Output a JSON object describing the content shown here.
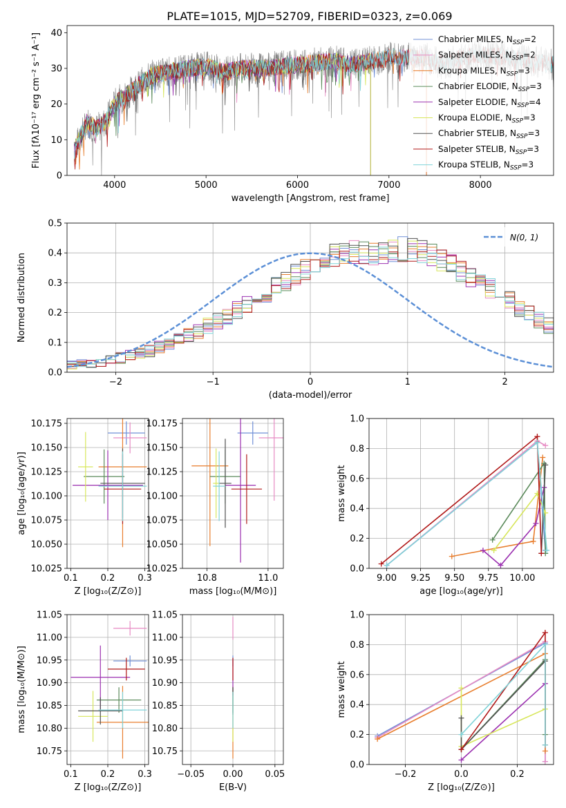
{
  "figure": {
    "title": "PLATE=1015, MJD=52709, FIBERID=0323, z=0.069"
  },
  "chart_data": [
    {
      "id": "spectrum",
      "type": "line",
      "xlabel": "wavelength [Angstrom, rest frame]",
      "ylabel": "Flux [fλ10⁻¹⁷ erg cm⁻² s⁻¹ A⁻¹]",
      "xlim": [
        3480,
        8800
      ],
      "ylim": [
        0,
        42
      ],
      "xticks": [
        4000,
        5000,
        6000,
        7000,
        8000
      ],
      "yticks": [
        0,
        10,
        20,
        30,
        40
      ],
      "grid": false,
      "legend_position": "top-right",
      "data_color": "#808080",
      "data_range": [
        3560,
        8800
      ],
      "continuum": [
        [
          3560,
          7
        ],
        [
          3700,
          15
        ],
        [
          3800,
          13
        ],
        [
          3900,
          15
        ],
        [
          4000,
          20
        ],
        [
          4200,
          24
        ],
        [
          4400,
          28
        ],
        [
          4600,
          29
        ],
        [
          4800,
          30
        ],
        [
          5000,
          30.5
        ],
        [
          5200,
          29
        ],
        [
          5400,
          30
        ],
        [
          5600,
          30
        ],
        [
          5800,
          30.5
        ],
        [
          6000,
          31
        ],
        [
          6200,
          31.5
        ],
        [
          6400,
          32
        ],
        [
          6600,
          31
        ],
        [
          6800,
          32
        ],
        [
          7000,
          33
        ],
        [
          7400,
          33
        ],
        [
          7600,
          31
        ],
        [
          7800,
          33
        ],
        [
          8000,
          34
        ],
        [
          8300,
          33
        ],
        [
          8600,
          32
        ],
        [
          8800,
          31
        ]
      ],
      "series": [
        {
          "name": "Chabrier MILES, N",
          "sub": "SSP",
          "suffix": "=2",
          "color": "#6f8fd7",
          "xmax": 7410
        },
        {
          "name": "Salpeter MILES, N",
          "sub": "SSP",
          "suffix": "=2",
          "color": "#e78ac3",
          "xmax": 7410
        },
        {
          "name": "Kroupa MILES, N",
          "sub": "SSP",
          "suffix": "=3",
          "color": "#e87d2c",
          "xmax": 7410
        },
        {
          "name": "Chabrier ELODIE, N",
          "sub": "SSP",
          "suffix": "=3",
          "color": "#5a8a5a",
          "xmax": 6800
        },
        {
          "name": "Salpeter ELODIE, N",
          "sub": "SSP",
          "suffix": "=4",
          "color": "#9b30b0",
          "xmax": 6800
        },
        {
          "name": "Kroupa ELODIE, N",
          "sub": "SSP",
          "suffix": "=3",
          "color": "#d7e65a",
          "xmax": 6800
        },
        {
          "name": "Chabrier STELIB, N",
          "sub": "SSP",
          "suffix": "=3",
          "color": "#505050",
          "xmax": 8800
        },
        {
          "name": "Salpeter STELIB, N",
          "sub": "SSP",
          "suffix": "=3",
          "color": "#b01818",
          "xmax": 8800
        },
        {
          "name": "Kroupa STELIB, N",
          "sub": "SSP",
          "suffix": "=3",
          "color": "#7fd3d8",
          "xmax": 8800
        }
      ]
    },
    {
      "id": "residuals",
      "type": "histogram",
      "xlabel": "(data-model)/error",
      "ylabel": "Normed distribution",
      "xlim": [
        -2.5,
        2.5
      ],
      "ylim": [
        0,
        0.5
      ],
      "xticks": [
        -2,
        -1,
        0,
        1,
        2
      ],
      "yticks": [
        0.0,
        0.1,
        0.2,
        0.3,
        0.4,
        0.5
      ],
      "grid": true,
      "legend_position": "top-right",
      "reference": {
        "name": "N(0, 1)",
        "color": "#5b8fd6",
        "mean": 0,
        "sigma": 1
      },
      "bin_edges_start": -2.5,
      "bin_width": 0.1,
      "base_values": [
        0.025,
        0.028,
        0.032,
        0.035,
        0.04,
        0.048,
        0.055,
        0.062,
        0.072,
        0.082,
        0.095,
        0.108,
        0.122,
        0.138,
        0.155,
        0.172,
        0.19,
        0.21,
        0.228,
        0.248,
        0.268,
        0.29,
        0.31,
        0.33,
        0.348,
        0.362,
        0.378,
        0.39,
        0.398,
        0.402,
        0.4,
        0.398,
        0.402,
        0.41,
        0.412,
        0.408,
        0.4,
        0.39,
        0.376,
        0.36,
        0.342,
        0.322,
        0.3,
        0.28,
        0.258,
        0.238,
        0.216,
        0.196,
        0.176,
        0.158,
        0.14,
        0.124,
        0.108,
        0.094,
        0.082,
        0.07,
        0.06,
        0.052,
        0.045,
        0.038,
        0.033,
        0.028,
        0.024,
        0.021,
        0.018,
        0.015,
        0.013,
        0.011,
        0.01,
        0.009
      ]
    },
    {
      "id": "age-vs-Z",
      "type": "errorbar",
      "xlabel": "Z [log₁₀(Z/Z⊙)]",
      "ylabel": "age  [log₁₀(age/yr)]",
      "xlim": [
        0.09,
        0.31
      ],
      "ylim": [
        10.025,
        10.18
      ],
      "xticks": [
        0.1,
        0.2,
        0.3
      ],
      "yticks": [
        10.025,
        10.05,
        10.075,
        10.1,
        10.125,
        10.15,
        10.175
      ],
      "grid": true,
      "points": [
        {
          "x": 0.25,
          "y": 10.165,
          "xerr": 0.05,
          "yerr": 0.012,
          "color": "#6f8fd7"
        },
        {
          "x": 0.26,
          "y": 10.16,
          "xerr": 0.045,
          "yerr": 0.016,
          "color": "#e78ac3"
        },
        {
          "x": 0.24,
          "y": 10.13,
          "xerr": 0.065,
          "yerr": 0.083,
          "color": "#e87d2c"
        },
        {
          "x": 0.19,
          "y": 10.12,
          "xerr": 0.055,
          "yerr": 0.028,
          "color": "#5a8a5a"
        },
        {
          "x": 0.2,
          "y": 10.111,
          "xerr": 0.095,
          "yerr": 0.036,
          "color": "#9b30b0"
        },
        {
          "x": 0.14,
          "y": 10.13,
          "xerr": 0.02,
          "yerr": 0.036,
          "color": "#d7e65a"
        },
        {
          "x": 0.24,
          "y": 10.113,
          "xerr": 0.06,
          "yerr": 0.036,
          "color": "#505050"
        },
        {
          "x": 0.24,
          "y": 10.107,
          "xerr": 0.05,
          "yerr": 0.036,
          "color": "#b01818"
        },
        {
          "x": 0.24,
          "y": 10.11,
          "xerr": 0.065,
          "yerr": 0.036,
          "color": "#7fd3d8"
        }
      ]
    },
    {
      "id": "age-vs-mass",
      "type": "errorbar",
      "xlabel": "mass [log₁₀(M/M⊙)]",
      "ylabel": "",
      "xlim": [
        10.72,
        11.05
      ],
      "ylim": [
        10.025,
        10.18
      ],
      "xticks": [
        10.8,
        11.0
      ],
      "yticks": [
        10.025,
        10.05,
        10.075,
        10.1,
        10.125,
        10.15,
        10.175
      ],
      "grid": true,
      "points": [
        {
          "x": 10.95,
          "y": 10.165,
          "xerr": 0.05,
          "yerr": 0.012,
          "color": "#6f8fd7"
        },
        {
          "x": 11.02,
          "y": 10.16,
          "xerr": 0.05,
          "yerr": 0.065,
          "color": "#e78ac3"
        },
        {
          "x": 10.81,
          "y": 10.131,
          "xerr": 0.06,
          "yerr": 0.083,
          "color": "#e87d2c"
        },
        {
          "x": 10.86,
          "y": 10.12,
          "xerr": 0.05,
          "yerr": 0.028,
          "color": "#5a8a5a"
        },
        {
          "x": 10.91,
          "y": 10.111,
          "xerr": 0.05,
          "yerr": 0.08,
          "color": "#9b30b0"
        },
        {
          "x": 10.83,
          "y": 10.113,
          "xerr": 0.01,
          "yerr": 0.036,
          "color": "#d7e65a"
        },
        {
          "x": 10.86,
          "y": 10.113,
          "xerr": 0.02,
          "yerr": 0.046,
          "color": "#505050"
        },
        {
          "x": 10.93,
          "y": 10.107,
          "xerr": 0.05,
          "yerr": 0.036,
          "color": "#b01818"
        },
        {
          "x": 10.84,
          "y": 10.11,
          "xerr": 0.02,
          "yerr": 0.036,
          "color": "#7fd3d8"
        }
      ]
    },
    {
      "id": "weight-vs-age",
      "type": "line",
      "xlabel": "age  [log₁₀(age/yr)]",
      "ylabel": "mass weight",
      "xlim": [
        8.87,
        10.23
      ],
      "ylim": [
        0,
        1
      ],
      "xticks": [
        9.0,
        9.25,
        9.5,
        9.75,
        10.0
      ],
      "yticks": [
        0.0,
        0.2,
        0.4,
        0.6,
        0.8,
        1.0
      ],
      "grid": true,
      "series": [
        {
          "color": "#6f8fd7",
          "points": [
            [
              9.0,
              0.02
            ],
            [
              10.11,
              0.84
            ],
            [
              10.17,
              0.12
            ]
          ]
        },
        {
          "color": "#e78ac3",
          "points": [
            [
              9.0,
              0.02
            ],
            [
              10.11,
              0.85
            ],
            [
              10.17,
              0.82
            ]
          ]
        },
        {
          "color": "#e87d2c",
          "points": [
            [
              9.48,
              0.08
            ],
            [
              10.08,
              0.18
            ],
            [
              10.15,
              0.74
            ]
          ]
        },
        {
          "color": "#5a8a5a",
          "points": [
            [
              9.78,
              0.19
            ],
            [
              10.16,
              0.7
            ],
            [
              10.17,
              0.1
            ]
          ]
        },
        {
          "color": "#9b30b0",
          "points": [
            [
              9.71,
              0.12
            ],
            [
              9.84,
              0.02
            ],
            [
              10.1,
              0.3
            ],
            [
              10.16,
              0.54
            ]
          ]
        },
        {
          "color": "#d7e65a",
          "points": [
            [
              9.79,
              0.12
            ],
            [
              10.11,
              0.5
            ],
            [
              10.17,
              0.37
            ]
          ]
        },
        {
          "color": "#505050",
          "points": [
            [
              10.14,
              0.1
            ],
            [
              10.17,
              0.69
            ]
          ]
        },
        {
          "color": "#b01818",
          "points": [
            [
              8.96,
              0.03
            ],
            [
              10.11,
              0.88
            ],
            [
              10.14,
              0.1
            ]
          ]
        },
        {
          "color": "#7fd3d8",
          "points": [
            [
              9.0,
              0.02
            ],
            [
              10.11,
              0.84
            ],
            [
              10.18,
              0.12
            ]
          ]
        }
      ]
    },
    {
      "id": "mass-vs-Z",
      "type": "errorbar",
      "xlabel": "Z [log₁₀(Z/Z⊙)]",
      "ylabel": "mass [log₁₀(M/M⊙)]",
      "xlim": [
        0.09,
        0.31
      ],
      "ylim": [
        10.72,
        11.05
      ],
      "xticks": [
        0.1,
        0.2,
        0.3
      ],
      "yticks": [
        10.75,
        10.8,
        10.85,
        10.9,
        10.95,
        11.0,
        11.05
      ],
      "grid": true,
      "points": [
        {
          "x": 0.26,
          "y": 10.948,
          "xerr": 0.045,
          "yerr": 0.012,
          "color": "#6f8fd7"
        },
        {
          "x": 0.26,
          "y": 11.02,
          "xerr": 0.045,
          "yerr": 0.016,
          "color": "#e78ac3"
        },
        {
          "x": 0.24,
          "y": 10.813,
          "xerr": 0.07,
          "yerr": 0.08,
          "color": "#e87d2c"
        },
        {
          "x": 0.23,
          "y": 10.862,
          "xerr": 0.06,
          "yerr": 0.028,
          "color": "#5a8a5a"
        },
        {
          "x": 0.18,
          "y": 10.912,
          "xerr": 0.08,
          "yerr": 0.07,
          "color": "#9b30b0"
        },
        {
          "x": 0.16,
          "y": 10.826,
          "xerr": 0.04,
          "yerr": 0.056,
          "color": "#d7e65a"
        },
        {
          "x": 0.18,
          "y": 10.838,
          "xerr": 0.06,
          "yerr": 0.03,
          "color": "#505050"
        },
        {
          "x": 0.25,
          "y": 10.93,
          "xerr": 0.05,
          "yerr": 0.025,
          "color": "#b01818"
        },
        {
          "x": 0.24,
          "y": 10.84,
          "xerr": 0.065,
          "yerr": 0.04,
          "color": "#7fd3d8"
        }
      ]
    },
    {
      "id": "mass-vs-EBV",
      "type": "errorbar",
      "xlabel": "E(B-V)",
      "ylabel": "",
      "xlim": [
        -0.06,
        0.06
      ],
      "ylim": [
        10.72,
        11.05
      ],
      "xticks": [
        -0.05,
        0.0,
        0.05
      ],
      "yticks": [
        10.75,
        10.8,
        10.85,
        10.9,
        10.95,
        11.0,
        11.05
      ],
      "grid": true,
      "points": [
        {
          "x": 0.0,
          "y": 10.948,
          "xerr": 0,
          "yerr": 0.012,
          "color": "#6f8fd7"
        },
        {
          "x": 0.0,
          "y": 11.02,
          "xerr": 0,
          "yerr": 0.025,
          "color": "#e78ac3"
        },
        {
          "x": 0.0,
          "y": 10.813,
          "xerr": 0,
          "yerr": 0.08,
          "color": "#e87d2c"
        },
        {
          "x": 0.0,
          "y": 10.862,
          "xerr": 0,
          "yerr": 0.028,
          "color": "#5a8a5a"
        },
        {
          "x": 0.0,
          "y": 10.912,
          "xerr": 0,
          "yerr": 0.04,
          "color": "#9b30b0"
        },
        {
          "x": 0.0,
          "y": 10.826,
          "xerr": 0,
          "yerr": 0.056,
          "color": "#d7e65a"
        },
        {
          "x": 0.0,
          "y": 10.86,
          "xerr": 0,
          "yerr": 0.03,
          "color": "#505050"
        },
        {
          "x": 0.0,
          "y": 10.93,
          "xerr": 0,
          "yerr": 0.025,
          "color": "#b01818"
        },
        {
          "x": 0.0,
          "y": 10.84,
          "xerr": 0,
          "yerr": 0.04,
          "color": "#7fd3d8"
        }
      ]
    },
    {
      "id": "weight-vs-Z",
      "type": "line",
      "xlabel": "Z [log₁₀(Z/Z⊙)]",
      "ylabel": "mass weight",
      "xlim": [
        -0.33,
        0.33
      ],
      "ylim": [
        0,
        1
      ],
      "xticks": [
        -0.2,
        0.0,
        0.2
      ],
      "yticks": [
        0.0,
        0.2,
        0.4,
        0.6,
        0.8,
        1.0
      ],
      "grid": true,
      "series": [
        {
          "color": "#6f8fd7",
          "points": [
            [
              -0.3,
              0.19
            ],
            [
              0.3,
              0.81
            ],
            [
              0.3,
              0.02
            ]
          ]
        },
        {
          "color": "#e78ac3",
          "points": [
            [
              -0.3,
              0.18
            ],
            [
              0.3,
              0.82
            ],
            [
              0.3,
              0.02
            ]
          ]
        },
        {
          "color": "#e87d2c",
          "points": [
            [
              -0.3,
              0.17
            ],
            [
              0.3,
              0.74
            ],
            [
              0.3,
              0.09
            ]
          ]
        },
        {
          "color": "#5a8a5a",
          "points": [
            [
              0.0,
              0.1
            ],
            [
              0.3,
              0.7
            ],
            [
              0.3,
              0.2
            ]
          ]
        },
        {
          "color": "#9b30b0",
          "points": [
            [
              0.0,
              0.03
            ],
            [
              0.3,
              0.54
            ]
          ]
        },
        {
          "color": "#d7e65a",
          "points": [
            [
              0.0,
              0.51
            ],
            [
              0.0,
              0.12
            ],
            [
              0.3,
              0.37
            ]
          ]
        },
        {
          "color": "#505050",
          "points": [
            [
              0.0,
              0.31
            ],
            [
              0.0,
              0.1
            ],
            [
              0.3,
              0.69
            ]
          ]
        },
        {
          "color": "#b01818",
          "points": [
            [
              0.0,
              0.1
            ],
            [
              0.3,
              0.88
            ],
            [
              0.3,
              0.13
            ]
          ]
        },
        {
          "color": "#7fd3d8",
          "points": [
            [
              0.0,
              0.2
            ],
            [
              0.3,
              0.8
            ],
            [
              0.3,
              0.13
            ]
          ]
        }
      ]
    }
  ]
}
